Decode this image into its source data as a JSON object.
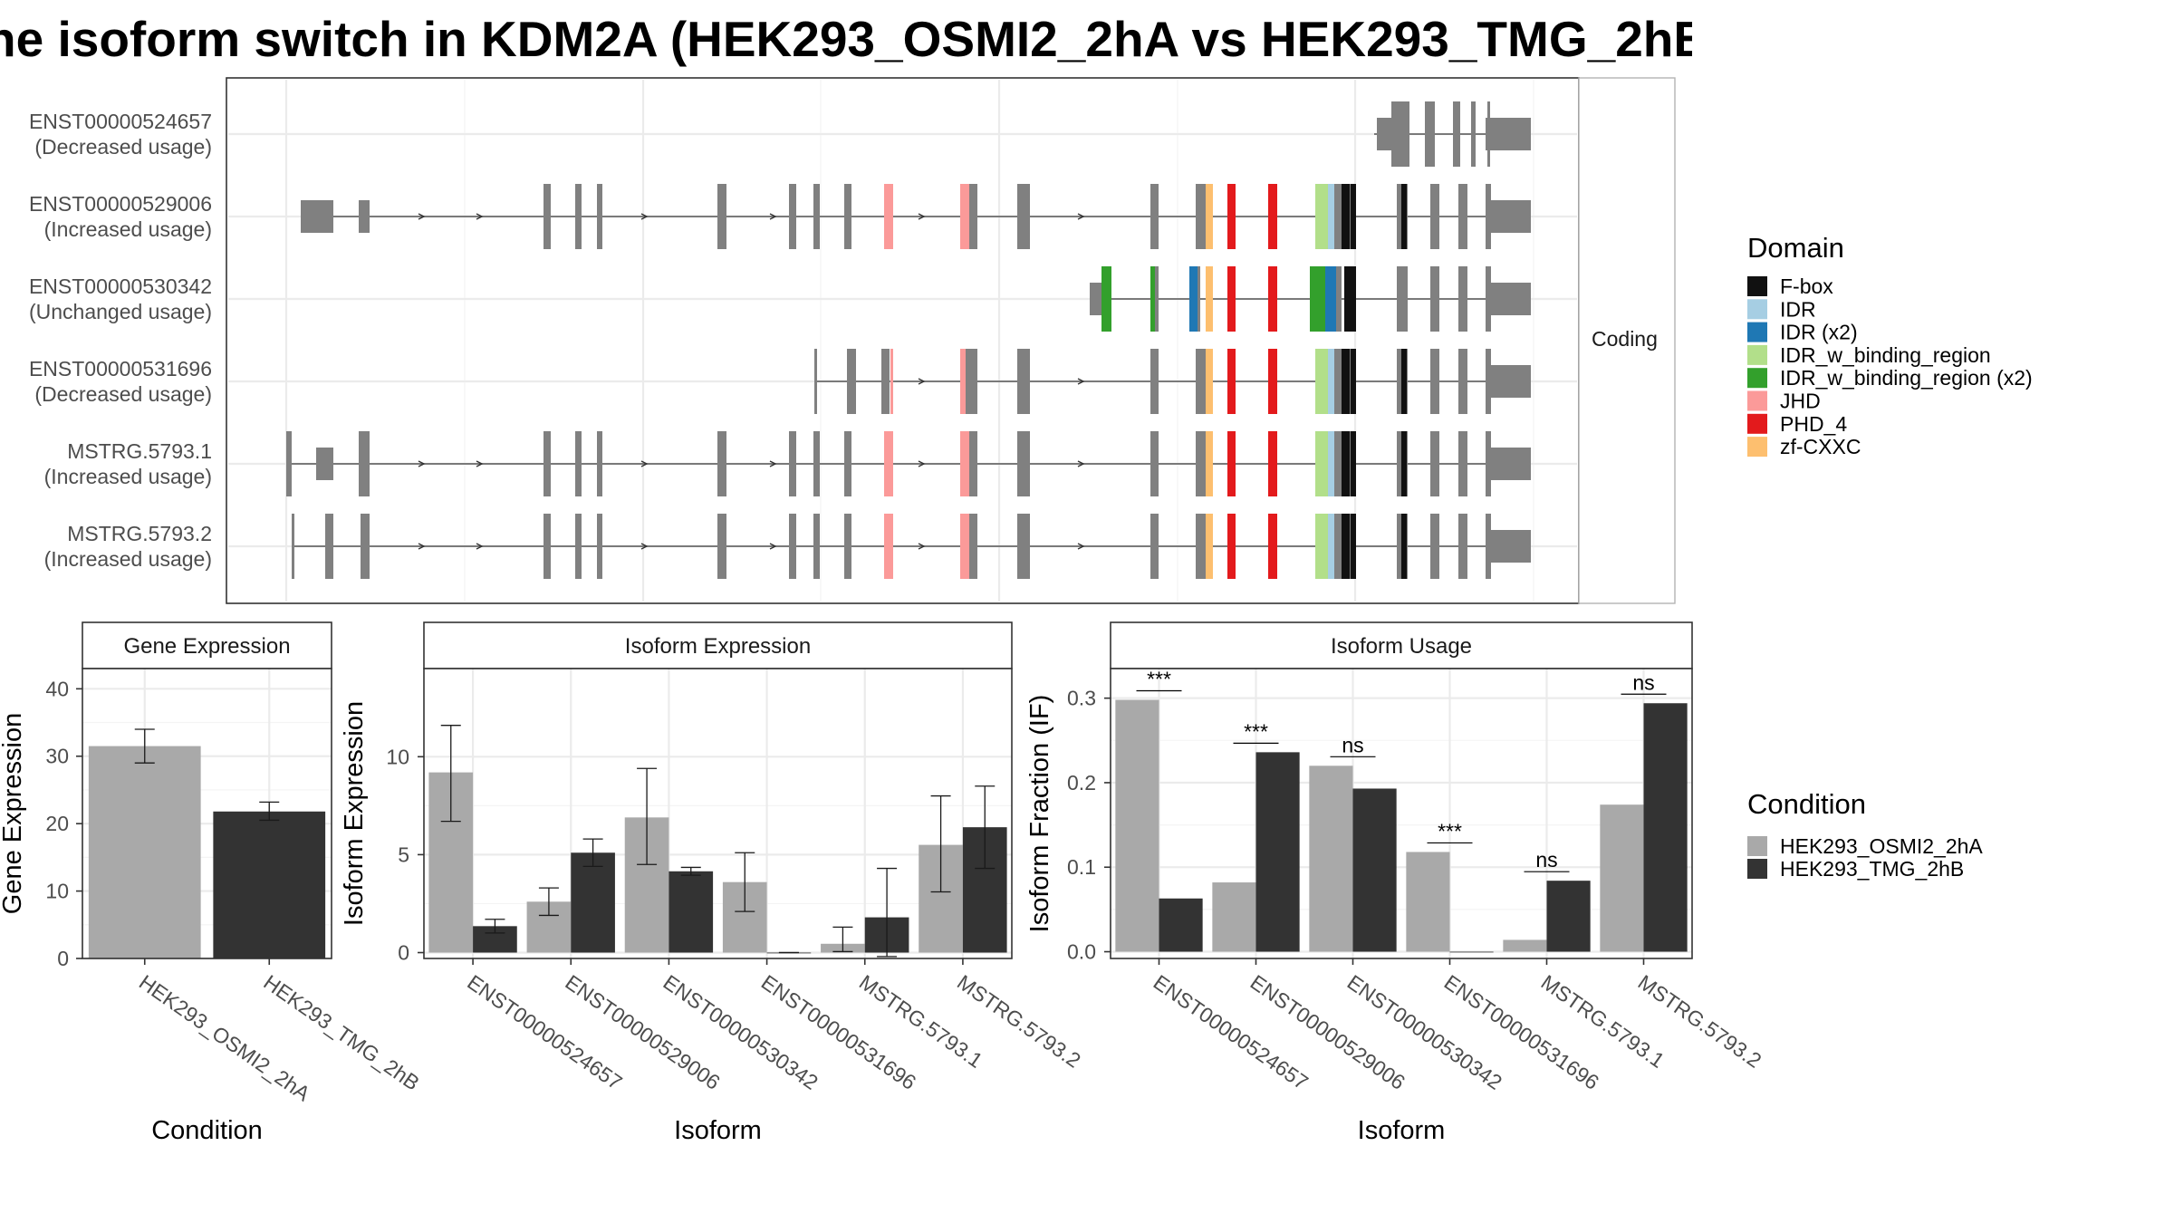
{
  "title": "he isoform switch in KDM2A (HEK293_OSMI2_2hA vs HEK293_TMG_2hB",
  "colors": {
    "exon": "#808080",
    "cond_a": "#a9a9a9",
    "cond_b": "#333333",
    "F-box": "#111111",
    "IDR": "#a6cee3",
    "IDR (x2)": "#1f78b4",
    "IDR_w_binding_region": "#b2df8a",
    "IDR_w_binding_region (x2)": "#33a02c",
    "JHD": "#fb9a99",
    "PHD_4": "#e31a1c",
    "zf-CXXC": "#fdbf6f"
  },
  "structure": {
    "strip_label": "Coding",
    "transcripts": [
      {
        "id": "ENST00000524657",
        "usage": "(Decreased usage)"
      },
      {
        "id": "ENST00000529006",
        "usage": "(Increased usage)"
      },
      {
        "id": "ENST00000530342",
        "usage": "(Unchanged usage)"
      },
      {
        "id": "ENST00000531696",
        "usage": "(Decreased usage)"
      },
      {
        "id": "MSTRG.5793.1",
        "usage": "(Increased usage)"
      },
      {
        "id": "MSTRG.5793.2",
        "usage": "(Increased usage)"
      }
    ]
  },
  "domain_legend": {
    "title": "Domain",
    "items": [
      "F-box",
      "IDR",
      "IDR (x2)",
      "IDR_w_binding_region",
      "IDR_w_binding_region (x2)",
      "JHD",
      "PHD_4",
      "zf-CXXC"
    ]
  },
  "condition_legend": {
    "title": "Condition",
    "items": [
      "HEK293_OSMI2_2hA",
      "HEK293_TMG_2hB"
    ]
  },
  "chart_data": [
    {
      "type": "bar",
      "title": "Gene Expression",
      "xlabel": "Condition",
      "ylabel": "Gene Expression",
      "ylim": [
        0,
        43
      ],
      "yticks": [
        0,
        10,
        20,
        30,
        40
      ],
      "categories": [
        "HEK293_OSMI2_2hA",
        "HEK293_TMG_2hB"
      ],
      "values": [
        31.5,
        21.8
      ],
      "errors": [
        [
          29.0,
          34.0
        ],
        [
          20.5,
          23.2
        ]
      ]
    },
    {
      "type": "bar",
      "title": "Isoform Expression",
      "xlabel": "Isoform",
      "ylabel": "Isoform Expression",
      "ylim": [
        -0.3,
        14.5
      ],
      "yticks": [
        0,
        5,
        10
      ],
      "categories": [
        "ENST00000524657",
        "ENST00000529006",
        "ENST00000530342",
        "ENST00000531696",
        "MSTRG.5793.1",
        "MSTRG.5793.2"
      ],
      "series": [
        {
          "name": "HEK293_OSMI2_2hA",
          "values": [
            9.2,
            2.6,
            6.9,
            3.6,
            0.45,
            5.5
          ],
          "errors": [
            [
              6.7,
              11.6
            ],
            [
              1.9,
              3.3
            ],
            [
              4.5,
              9.4
            ],
            [
              2.1,
              5.1
            ],
            [
              0.05,
              1.3
            ],
            [
              3.1,
              8.0
            ]
          ]
        },
        {
          "name": "HEK293_TMG_2hB",
          "values": [
            1.35,
            5.1,
            4.15,
            0.0,
            1.8,
            6.4
          ],
          "errors": [
            [
              1.0,
              1.7
            ],
            [
              4.4,
              5.8
            ],
            [
              3.95,
              4.35
            ],
            [
              0.0,
              0.0
            ],
            [
              -0.2,
              4.3
            ],
            [
              4.3,
              8.5
            ]
          ]
        }
      ]
    },
    {
      "type": "bar",
      "title": "Isoform Usage",
      "xlabel": "Isoform",
      "ylabel": "Isoform Fraction (IF)",
      "ylim": [
        -0.008,
        0.335
      ],
      "yticks": [
        0.0,
        0.1,
        0.2,
        0.3
      ],
      "ytick_labels": [
        "0.0",
        "0.1",
        "0.2",
        "0.3"
      ],
      "categories": [
        "ENST00000524657",
        "ENST00000529006",
        "ENST00000530342",
        "ENST00000531696",
        "MSTRG.5793.1",
        "MSTRG.5793.2"
      ],
      "series": [
        {
          "name": "HEK293_OSMI2_2hA",
          "values": [
            0.298,
            0.082,
            0.22,
            0.118,
            0.014,
            0.174
          ]
        },
        {
          "name": "HEK293_TMG_2hB",
          "values": [
            0.063,
            0.236,
            0.193,
            0.0,
            0.084,
            0.294
          ]
        }
      ],
      "significance": [
        "***",
        "***",
        "ns",
        "***",
        "ns",
        "ns"
      ]
    }
  ]
}
